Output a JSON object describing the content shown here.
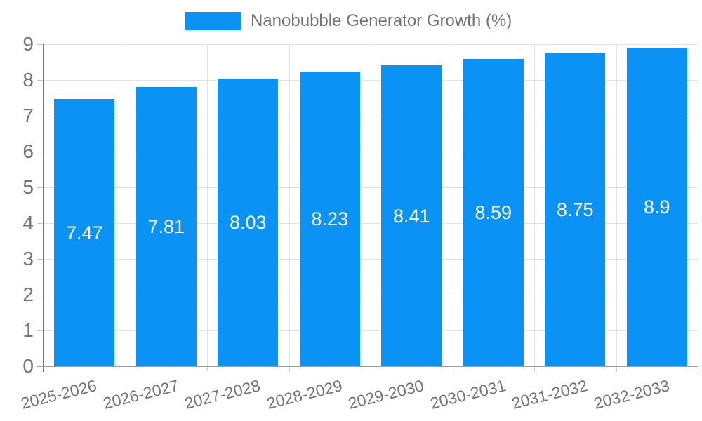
{
  "chart_data": {
    "type": "bar",
    "title": "",
    "legend_position": "top",
    "categories": [
      "2025-2026",
      "2026-2027",
      "2027-2028",
      "2028-2029",
      "2029-2030",
      "2030-2031",
      "2031-2032",
      "2032-2033"
    ],
    "series": [
      {
        "name": "Nanobubble Generator Growth (%)",
        "values": [
          7.47,
          7.81,
          8.03,
          8.23,
          8.41,
          8.59,
          8.75,
          8.9
        ]
      }
    ],
    "value_labels": [
      "7.47",
      "7.81",
      "8.03",
      "8.23",
      "8.41",
      "8.59",
      "8.75",
      "8.9"
    ],
    "xlabel": "",
    "ylabel": "",
    "ylim": [
      0,
      9
    ],
    "yticks": [
      0,
      1,
      2,
      3,
      4,
      5,
      6,
      7,
      8,
      9
    ],
    "ytick_labels": [
      "0",
      "1",
      "2",
      "3",
      "4",
      "5",
      "6",
      "7",
      "8",
      "9"
    ],
    "grid": true,
    "x_tick_rotation_deg": -14,
    "colors": {
      "bar": "#0a92f5",
      "bar_label": "#ffffff",
      "grid": "#e3e3e3",
      "axis_line": "#757575",
      "baseline": "#9e9e9e",
      "tick": "#c9c9c9",
      "tick_label": "#757575",
      "legend_text": "#757575",
      "background": "#ffffff"
    }
  }
}
